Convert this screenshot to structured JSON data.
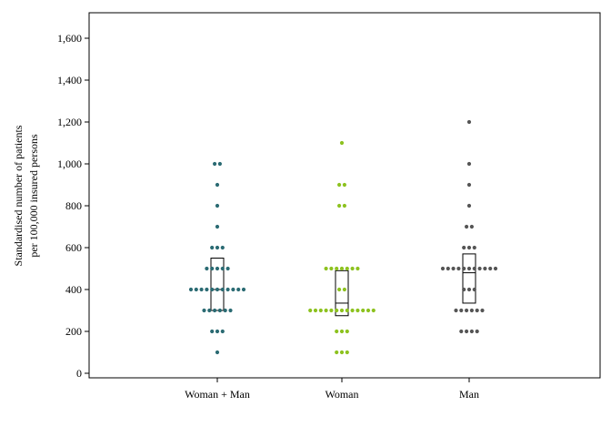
{
  "chart_data": {
    "type": "scatter",
    "subtype": "dot-strip-with-boxplot",
    "ylabel_line1": "Standardised number of patients",
    "ylabel_line2": "per 100,000 insured persons",
    "ylim": [
      0,
      1700
    ],
    "yticks": [
      0,
      200,
      400,
      600,
      800,
      1000,
      1200,
      1400,
      1600
    ],
    "ytick_labels": [
      "0",
      "200",
      "400",
      "600",
      "800",
      "1,000",
      "1,200",
      "1,400",
      "1,600"
    ],
    "categories": [
      "Woman + Man",
      "Woman",
      "Man"
    ],
    "grid": false,
    "series": [
      {
        "color": "#2b6b73",
        "values": [
          100,
          200,
          200,
          200,
          300,
          300,
          300,
          300,
          300,
          300,
          400,
          400,
          400,
          400,
          400,
          400,
          400,
          400,
          400,
          400,
          400,
          500,
          500,
          500,
          500,
          500,
          600,
          600,
          600,
          700,
          800,
          900,
          1000,
          1000
        ],
        "box": {
          "q1": 300,
          "median": 400,
          "q3": 550
        }
      },
      {
        "color": "#8dc21f",
        "values": [
          100,
          100,
          100,
          200,
          200,
          200,
          300,
          300,
          300,
          300,
          300,
          300,
          300,
          300,
          300,
          300,
          300,
          300,
          300,
          400,
          400,
          500,
          500,
          500,
          500,
          500,
          500,
          500,
          800,
          800,
          900,
          900,
          1100
        ],
        "box": {
          "q1": 275,
          "median": 335,
          "q3": 490
        }
      },
      {
        "color": "#555555",
        "values": [
          200,
          200,
          200,
          200,
          300,
          300,
          300,
          300,
          300,
          300,
          400,
          400,
          400,
          500,
          500,
          500,
          500,
          500,
          500,
          500,
          500,
          500,
          500,
          500,
          600,
          600,
          600,
          700,
          700,
          800,
          900,
          1000,
          1200
        ],
        "box": {
          "q1": 335,
          "median": 480,
          "q3": 570
        }
      }
    ]
  }
}
